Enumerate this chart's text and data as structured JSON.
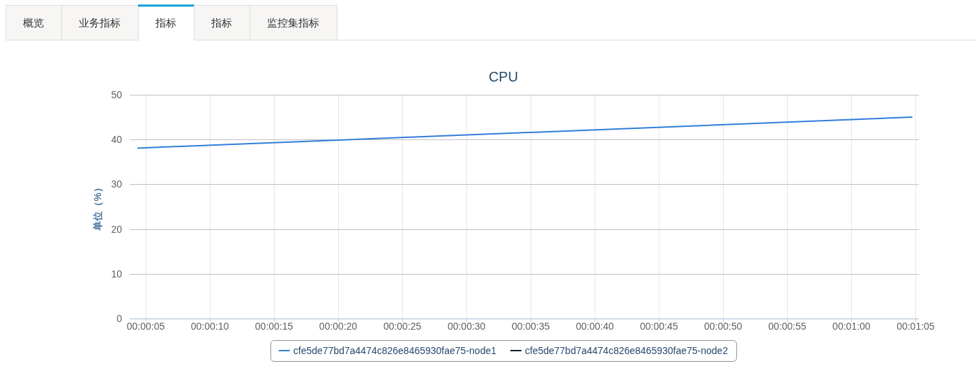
{
  "chart_data": {
    "type": "line",
    "title": "CPU",
    "ylabel": "单位（%）",
    "annotations": [
      "概览",
      "业务指标",
      "指标",
      "指标",
      "监控集指标"
    ],
    "x": [
      4.4,
      64.7
    ],
    "series": [
      {
        "name": "cfe5de77bd7a4474c826e8465930fae75-node1",
        "color": "#2f7ed8",
        "values": [
          38.1,
          45.0
        ]
      },
      {
        "name": "cfe5de77bd7a4474c826e8465930fae75-node2",
        "color": "#0d233a",
        "values": [
          null,
          null
        ]
      }
    ],
    "xlim": [
      3.75,
      65.25
    ],
    "xticks": [
      {
        "value": 5,
        "label": "00:00:05"
      },
      {
        "value": 10,
        "label": "00:00:10"
      },
      {
        "value": 15,
        "label": "00:00:15"
      },
      {
        "value": 20,
        "label": "00:00:20"
      },
      {
        "value": 25,
        "label": "00:00:25"
      },
      {
        "value": 30,
        "label": "00:00:30"
      },
      {
        "value": 35,
        "label": "00:00:35"
      },
      {
        "value": 40,
        "label": "00:00:40"
      },
      {
        "value": 45,
        "label": "00:00:45"
      },
      {
        "value": 50,
        "label": "00:00:50"
      },
      {
        "value": 55,
        "label": "00:00:55"
      },
      {
        "value": 60,
        "label": "00:01:00"
      },
      {
        "value": 65,
        "label": "00:01:05"
      }
    ],
    "ylim": [
      0,
      50
    ],
    "yticks": [
      0,
      10,
      20,
      30,
      40,
      50
    ],
    "grid": true,
    "legend": "bottom",
    "marker": "none",
    "line_style": "solid"
  }
}
